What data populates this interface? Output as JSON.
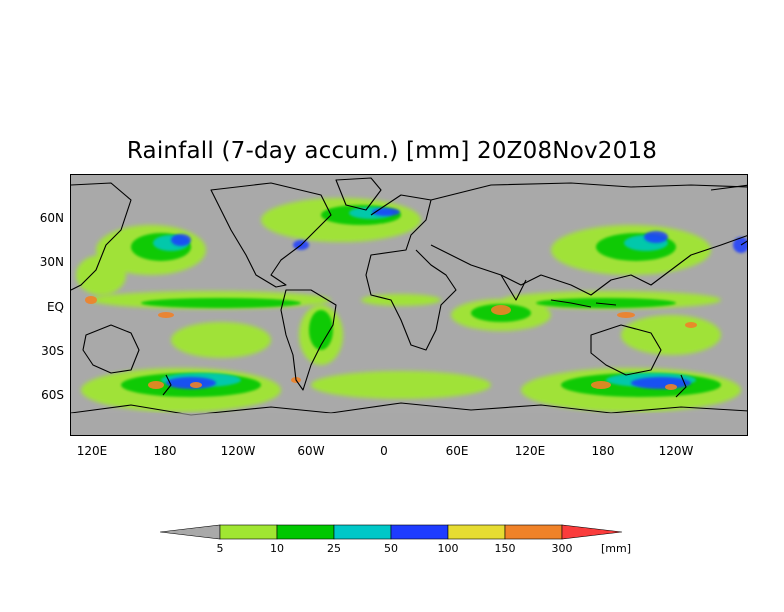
{
  "title": "Rainfall (7-day accum.) [mm] 20Z08Nov2018",
  "lat_labels": [
    "60N",
    "30N",
    "EQ",
    "30S",
    "60S"
  ],
  "lon_labels": [
    "120E",
    "180",
    "120W",
    "60W",
    "0",
    "60E",
    "120E",
    "180",
    "120W"
  ],
  "colorbar": {
    "unit": "[mm]",
    "thresholds": [
      "5",
      "10",
      "25",
      "50",
      "100",
      "150",
      "300"
    ],
    "colors": [
      "#a9a9a9",
      "#a0e632",
      "#00c800",
      "#00c8c8",
      "#1e3cff",
      "#e6dc32",
      "#f08228",
      "#fa3c3c"
    ]
  },
  "colors": {
    "ocean_land_background": "#a9a9a9",
    "coastline": "#000000"
  }
}
